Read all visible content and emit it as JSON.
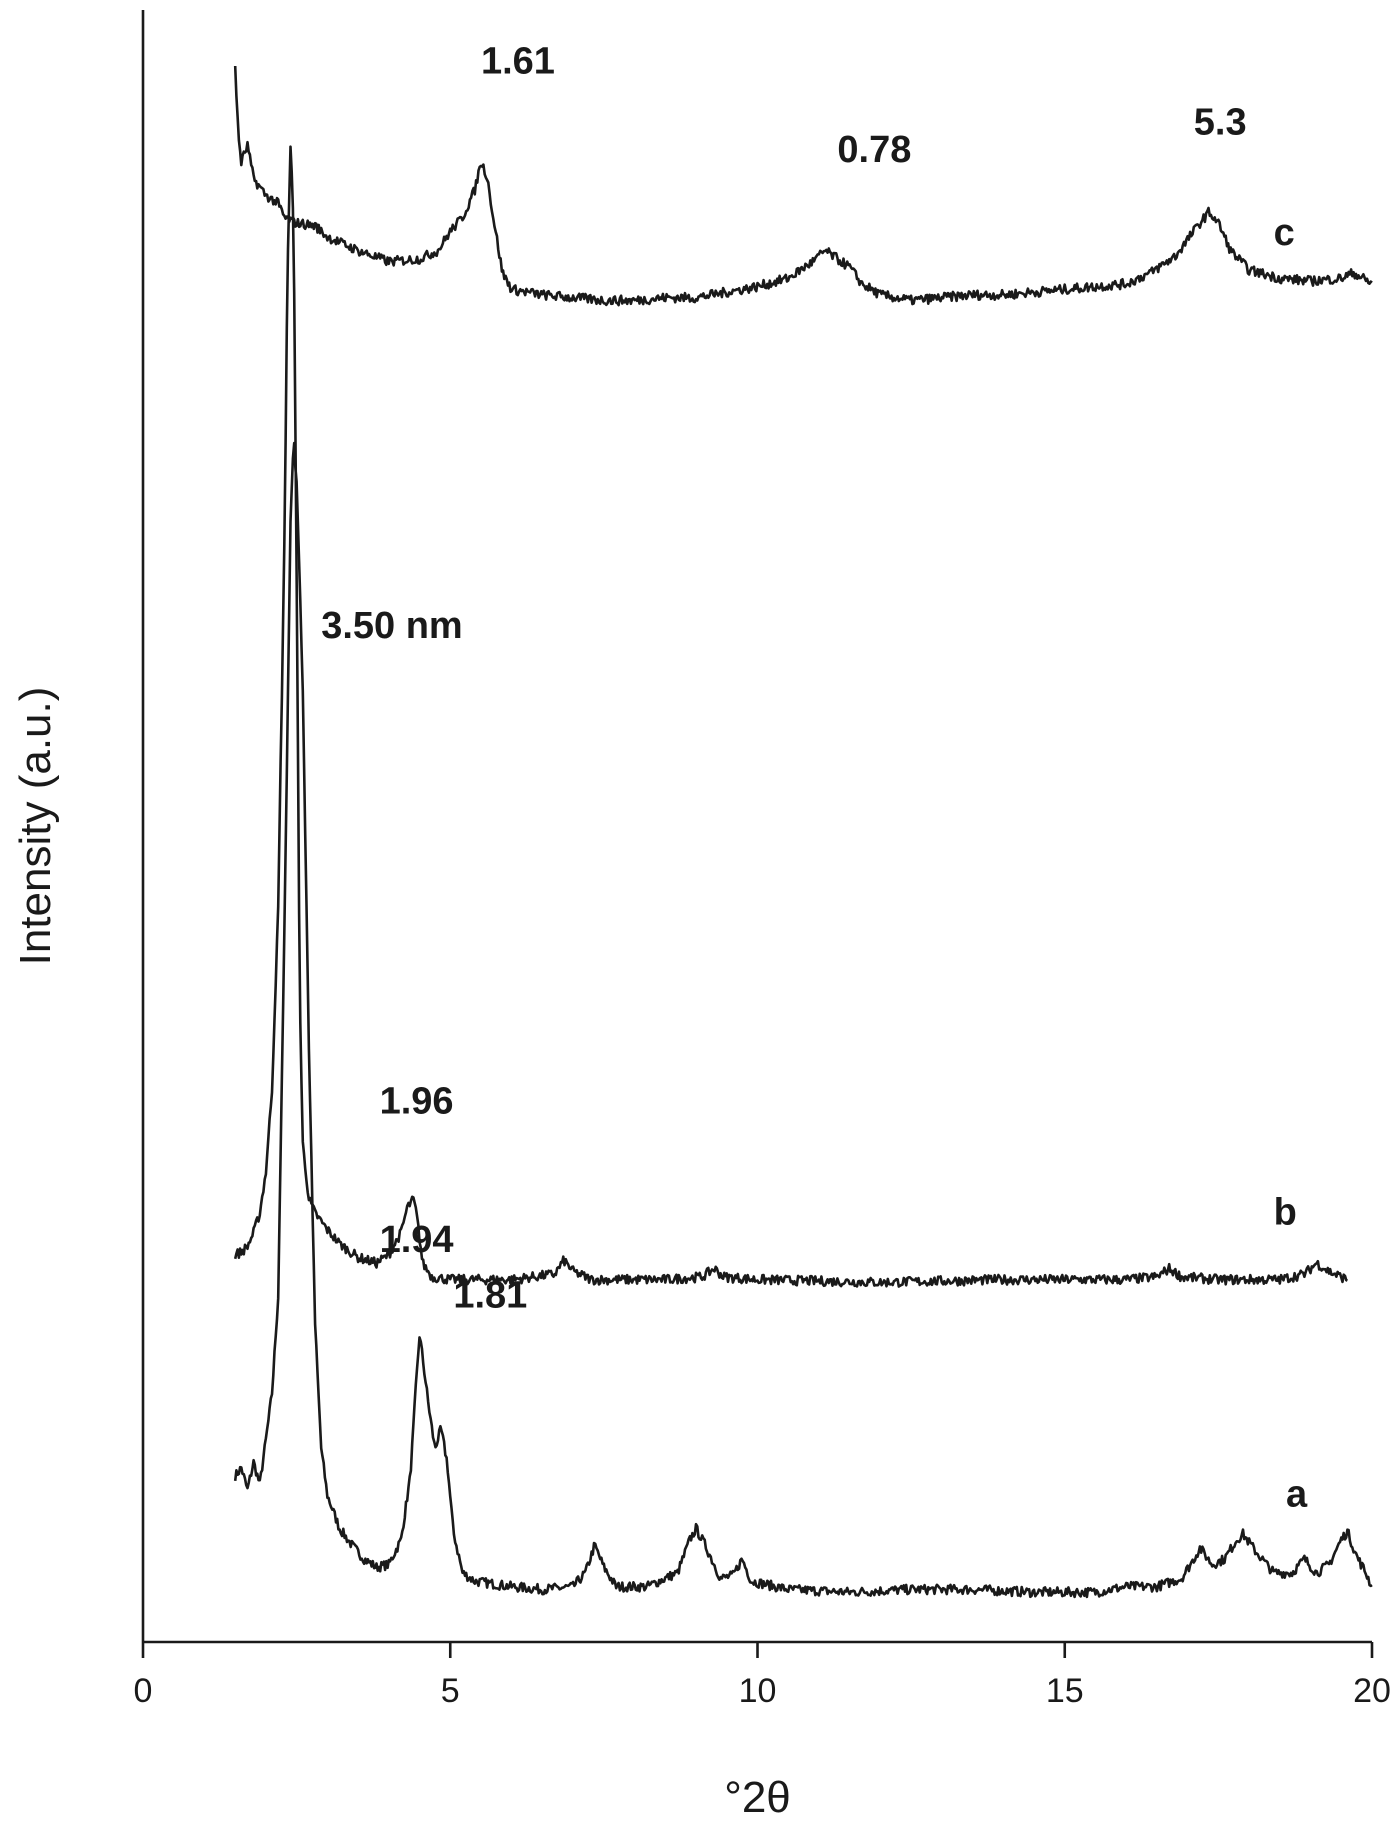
{
  "chart_data": {
    "type": "line",
    "title": "",
    "xlabel": "°2θ",
    "ylabel": "Intensity (a.u.)",
    "xlim": [
      0,
      20
    ],
    "x_ticks": [
      0,
      5,
      10,
      15,
      20
    ],
    "y_ticks": [],
    "grid": false,
    "legend": "none",
    "y_scale": "arbitrary, curves vertically offset",
    "series": [
      {
        "label": "a",
        "baseline": 0.0,
        "points": [
          [
            1.5,
            0.45
          ],
          [
            1.6,
            0.48
          ],
          [
            1.7,
            0.4
          ],
          [
            1.8,
            0.5
          ],
          [
            1.9,
            0.42
          ],
          [
            2.0,
            0.58
          ],
          [
            2.1,
            0.75
          ],
          [
            2.2,
            1.1
          ],
          [
            2.3,
            2.4
          ],
          [
            2.4,
            3.9
          ],
          [
            2.45,
            4.2
          ],
          [
            2.5,
            4.05
          ],
          [
            2.6,
            3.3
          ],
          [
            2.7,
            2.0
          ],
          [
            2.8,
            1.0
          ],
          [
            2.9,
            0.55
          ],
          [
            3.0,
            0.38
          ],
          [
            3.2,
            0.26
          ],
          [
            3.4,
            0.2
          ],
          [
            3.6,
            0.15
          ],
          [
            3.8,
            0.12
          ],
          [
            4.0,
            0.13
          ],
          [
            4.2,
            0.22
          ],
          [
            4.35,
            0.45
          ],
          [
            4.45,
            0.8
          ],
          [
            4.5,
            0.96
          ],
          [
            4.55,
            0.88
          ],
          [
            4.65,
            0.7
          ],
          [
            4.75,
            0.55
          ],
          [
            4.85,
            0.62
          ],
          [
            4.95,
            0.5
          ],
          [
            5.05,
            0.25
          ],
          [
            5.2,
            0.1
          ],
          [
            5.4,
            0.07
          ],
          [
            6.0,
            0.05
          ],
          [
            6.5,
            0.04
          ],
          [
            7.0,
            0.05
          ],
          [
            7.2,
            0.1
          ],
          [
            7.35,
            0.2
          ],
          [
            7.5,
            0.12
          ],
          [
            7.7,
            0.05
          ],
          [
            8.2,
            0.05
          ],
          [
            8.7,
            0.1
          ],
          [
            8.9,
            0.22
          ],
          [
            9.0,
            0.26
          ],
          [
            9.15,
            0.2
          ],
          [
            9.4,
            0.08
          ],
          [
            9.6,
            0.09
          ],
          [
            9.75,
            0.15
          ],
          [
            9.9,
            0.07
          ],
          [
            10.5,
            0.04
          ],
          [
            11.5,
            0.03
          ],
          [
            12.5,
            0.04
          ],
          [
            13.5,
            0.04
          ],
          [
            14.5,
            0.03
          ],
          [
            15.5,
            0.03
          ],
          [
            16.0,
            0.05
          ],
          [
            16.5,
            0.05
          ],
          [
            16.9,
            0.08
          ],
          [
            17.1,
            0.15
          ],
          [
            17.2,
            0.19
          ],
          [
            17.4,
            0.13
          ],
          [
            17.6,
            0.15
          ],
          [
            17.8,
            0.22
          ],
          [
            17.9,
            0.24
          ],
          [
            18.1,
            0.18
          ],
          [
            18.4,
            0.1
          ],
          [
            18.7,
            0.1
          ],
          [
            18.9,
            0.15
          ],
          [
            19.1,
            0.1
          ],
          [
            19.3,
            0.13
          ],
          [
            19.5,
            0.22
          ],
          [
            19.6,
            0.25
          ],
          [
            19.75,
            0.16
          ],
          [
            19.9,
            0.1
          ],
          [
            20.0,
            0.05
          ]
        ]
      },
      {
        "label": "b",
        "baseline": 1.15,
        "points": [
          [
            1.5,
            1.25
          ],
          [
            1.6,
            1.26
          ],
          [
            1.7,
            1.28
          ],
          [
            1.8,
            1.33
          ],
          [
            1.9,
            1.4
          ],
          [
            2.0,
            1.55
          ],
          [
            2.1,
            1.85
          ],
          [
            2.2,
            2.5
          ],
          [
            2.3,
            3.8
          ],
          [
            2.35,
            4.8
          ],
          [
            2.4,
            5.25
          ],
          [
            2.45,
            5.0
          ],
          [
            2.5,
            3.7
          ],
          [
            2.55,
            2.2
          ],
          [
            2.6,
            1.65
          ],
          [
            2.7,
            1.45
          ],
          [
            2.8,
            1.4
          ],
          [
            3.0,
            1.34
          ],
          [
            3.2,
            1.29
          ],
          [
            3.5,
            1.24
          ],
          [
            3.8,
            1.22
          ],
          [
            4.0,
            1.25
          ],
          [
            4.2,
            1.33
          ],
          [
            4.3,
            1.42
          ],
          [
            4.4,
            1.45
          ],
          [
            4.45,
            1.4
          ],
          [
            4.55,
            1.22
          ],
          [
            4.7,
            1.17
          ],
          [
            5.0,
            1.16
          ],
          [
            6.0,
            1.16
          ],
          [
            6.7,
            1.18
          ],
          [
            6.85,
            1.23
          ],
          [
            7.0,
            1.19
          ],
          [
            7.3,
            1.16
          ],
          [
            8.5,
            1.16
          ],
          [
            9.1,
            1.17
          ],
          [
            9.3,
            1.2
          ],
          [
            9.45,
            1.17
          ],
          [
            10.0,
            1.16
          ],
          [
            12.0,
            1.15
          ],
          [
            14.0,
            1.16
          ],
          [
            16.0,
            1.16
          ],
          [
            16.5,
            1.17
          ],
          [
            16.7,
            1.2
          ],
          [
            16.9,
            1.17
          ],
          [
            17.5,
            1.16
          ],
          [
            18.5,
            1.16
          ],
          [
            18.9,
            1.18
          ],
          [
            19.1,
            1.22
          ],
          [
            19.3,
            1.19
          ],
          [
            19.6,
            1.16
          ]
        ]
      },
      {
        "label": "c",
        "baseline": 4.6,
        "points": [
          [
            1.5,
            5.55
          ],
          [
            1.55,
            5.3
          ],
          [
            1.6,
            5.2
          ],
          [
            1.7,
            5.26
          ],
          [
            1.8,
            5.14
          ],
          [
            1.9,
            5.11
          ],
          [
            2.0,
            5.08
          ],
          [
            2.2,
            5.05
          ],
          [
            2.3,
            5.0
          ],
          [
            2.5,
            4.98
          ],
          [
            2.8,
            4.97
          ],
          [
            3.0,
            4.93
          ],
          [
            3.5,
            4.88
          ],
          [
            4.0,
            4.84
          ],
          [
            4.5,
            4.85
          ],
          [
            4.8,
            4.88
          ],
          [
            5.0,
            4.95
          ],
          [
            5.2,
            5.0
          ],
          [
            5.4,
            5.1
          ],
          [
            5.5,
            5.2
          ],
          [
            5.6,
            5.15
          ],
          [
            5.7,
            5.0
          ],
          [
            5.85,
            4.8
          ],
          [
            6.0,
            4.74
          ],
          [
            6.5,
            4.72
          ],
          [
            7.0,
            4.71
          ],
          [
            7.5,
            4.7
          ],
          [
            8.0,
            4.7
          ],
          [
            8.5,
            4.71
          ],
          [
            9.0,
            4.71
          ],
          [
            9.5,
            4.73
          ],
          [
            10.0,
            4.75
          ],
          [
            10.5,
            4.78
          ],
          [
            10.9,
            4.84
          ],
          [
            11.1,
            4.88
          ],
          [
            11.3,
            4.85
          ],
          [
            11.5,
            4.82
          ],
          [
            11.7,
            4.76
          ],
          [
            12.0,
            4.72
          ],
          [
            12.5,
            4.7
          ],
          [
            13.0,
            4.71
          ],
          [
            13.5,
            4.72
          ],
          [
            14.0,
            4.72
          ],
          [
            14.5,
            4.73
          ],
          [
            15.0,
            4.74
          ],
          [
            15.5,
            4.75
          ],
          [
            16.0,
            4.76
          ],
          [
            16.4,
            4.8
          ],
          [
            16.8,
            4.86
          ],
          [
            17.0,
            4.92
          ],
          [
            17.2,
            4.98
          ],
          [
            17.35,
            5.02
          ],
          [
            17.5,
            4.98
          ],
          [
            17.7,
            4.88
          ],
          [
            18.0,
            4.81
          ],
          [
            18.5,
            4.78
          ],
          [
            19.0,
            4.77
          ],
          [
            19.5,
            4.78
          ],
          [
            19.7,
            4.8
          ],
          [
            20.0,
            4.76
          ]
        ]
      }
    ],
    "annotations": [
      {
        "text": "1.61",
        "x": 5.5,
        "y": 5.52,
        "anchor": "start"
      },
      {
        "text": "0.78",
        "x": 11.3,
        "y": 5.2,
        "anchor": "start"
      },
      {
        "text": "5.3",
        "x": 17.1,
        "y": 5.3,
        "anchor": "start"
      },
      {
        "text": "c",
        "x": 18.4,
        "y": 4.9,
        "anchor": "start"
      },
      {
        "text": "3.50 nm",
        "x": 2.9,
        "y": 3.48,
        "anchor": "start"
      },
      {
        "text": "1.96",
        "x": 3.85,
        "y": 1.76,
        "anchor": "start"
      },
      {
        "text": "b",
        "x": 18.4,
        "y": 1.36,
        "anchor": "start"
      },
      {
        "text": "1.94",
        "x": 3.85,
        "y": 1.26,
        "anchor": "start"
      },
      {
        "text": "1.81",
        "x": 5.05,
        "y": 1.06,
        "anchor": "start"
      },
      {
        "text": "a",
        "x": 18.6,
        "y": 0.34,
        "anchor": "start"
      }
    ]
  }
}
